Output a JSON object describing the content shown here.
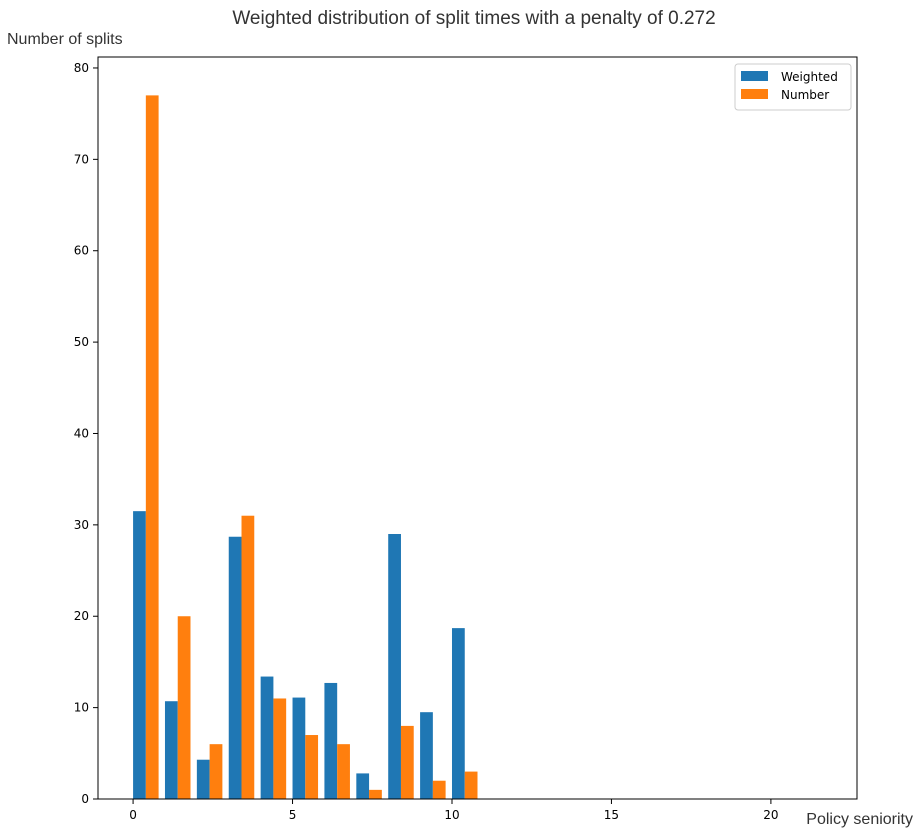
{
  "chart_data": {
    "type": "bar",
    "title": "Weighted distribution of split times with a penalty of 0.272",
    "xlabel": "Policy seniority",
    "ylabel": "Number of splits",
    "categories": [
      0,
      1,
      2,
      3,
      4,
      5,
      6,
      7,
      8,
      9,
      10
    ],
    "series": [
      {
        "name": "Weighted",
        "color": "#1f77b4",
        "values": [
          31.5,
          10.7,
          4.3,
          28.7,
          13.4,
          11.1,
          12.7,
          2.8,
          29.0,
          9.5,
          18.7
        ]
      },
      {
        "name": "Number",
        "color": "#ff7f0e",
        "values": [
          77,
          20,
          6,
          31,
          11,
          7,
          6,
          1,
          8,
          2,
          3
        ]
      }
    ],
    "xlim": [
      -1.1,
      22.7
    ],
    "ylim": [
      0,
      81.2
    ],
    "xticks": [
      0,
      5,
      10,
      15,
      20
    ],
    "yticks": [
      0,
      10,
      20,
      30,
      40,
      50,
      60,
      70,
      80
    ],
    "grid": false,
    "legend_position": "top-right"
  }
}
